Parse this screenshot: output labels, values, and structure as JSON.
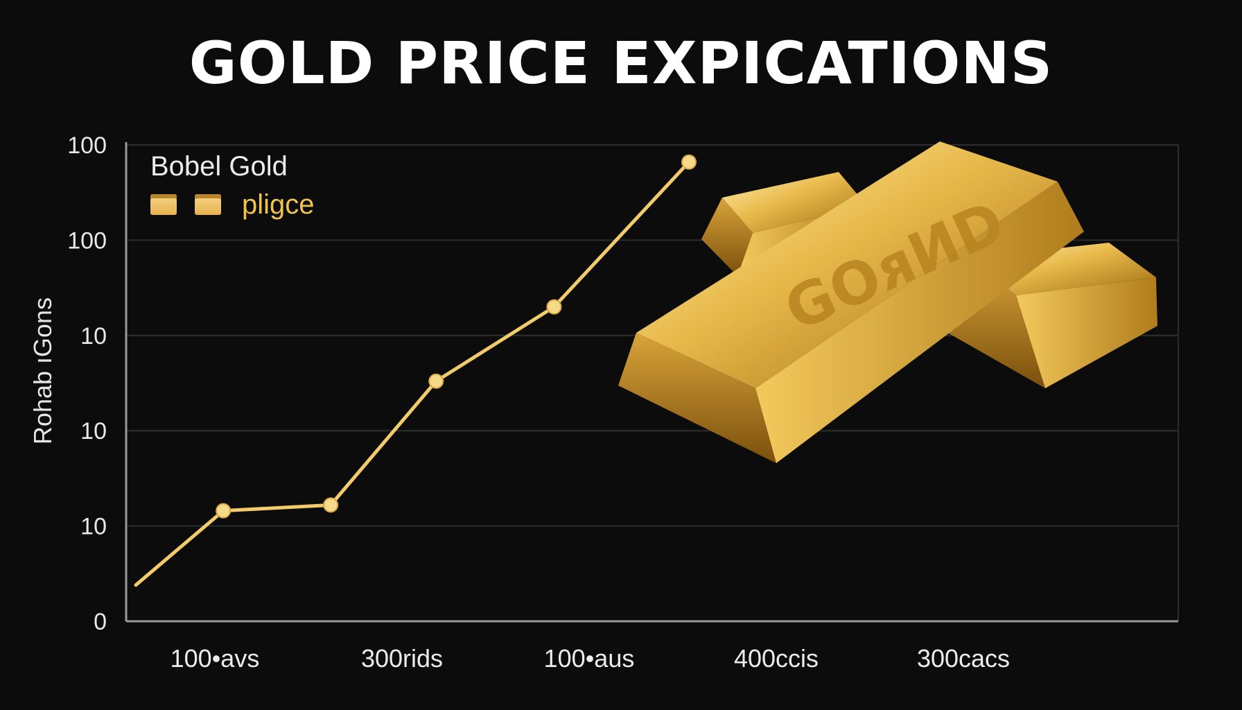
{
  "chart_data": {
    "type": "line",
    "title": "GOLD PRICE EXPICATIONS",
    "ylabel": "Rohab ıGons",
    "xlabel": "",
    "categories": [
      "100•avs",
      "300rids",
      "100•aus",
      "400ccis",
      "300cacs"
    ],
    "y_tick_labels": [
      "100",
      "100",
      "10",
      "10",
      "10",
      "0"
    ],
    "grid": true,
    "legend": {
      "title": "Bobel Gold",
      "placement": "top-left",
      "entries": [
        {
          "label": "pligce"
        }
      ]
    },
    "series": [
      {
        "values": [
          {
            "x": 0.0,
            "y": 0.38
          },
          {
            "x": 0.83,
            "y": 1.16
          },
          {
            "x": 1.85,
            "y": 1.22
          },
          {
            "x": 2.85,
            "y": 2.52
          },
          {
            "x": 3.97,
            "y": 3.3
          },
          {
            "x": 5.25,
            "y": 4.82
          }
        ]
      }
    ],
    "colors": {
      "line": "#f2cb6b",
      "marker": "#f7d98a",
      "grid": "#2e2e2e",
      "axis": "#9a9a9a"
    }
  }
}
